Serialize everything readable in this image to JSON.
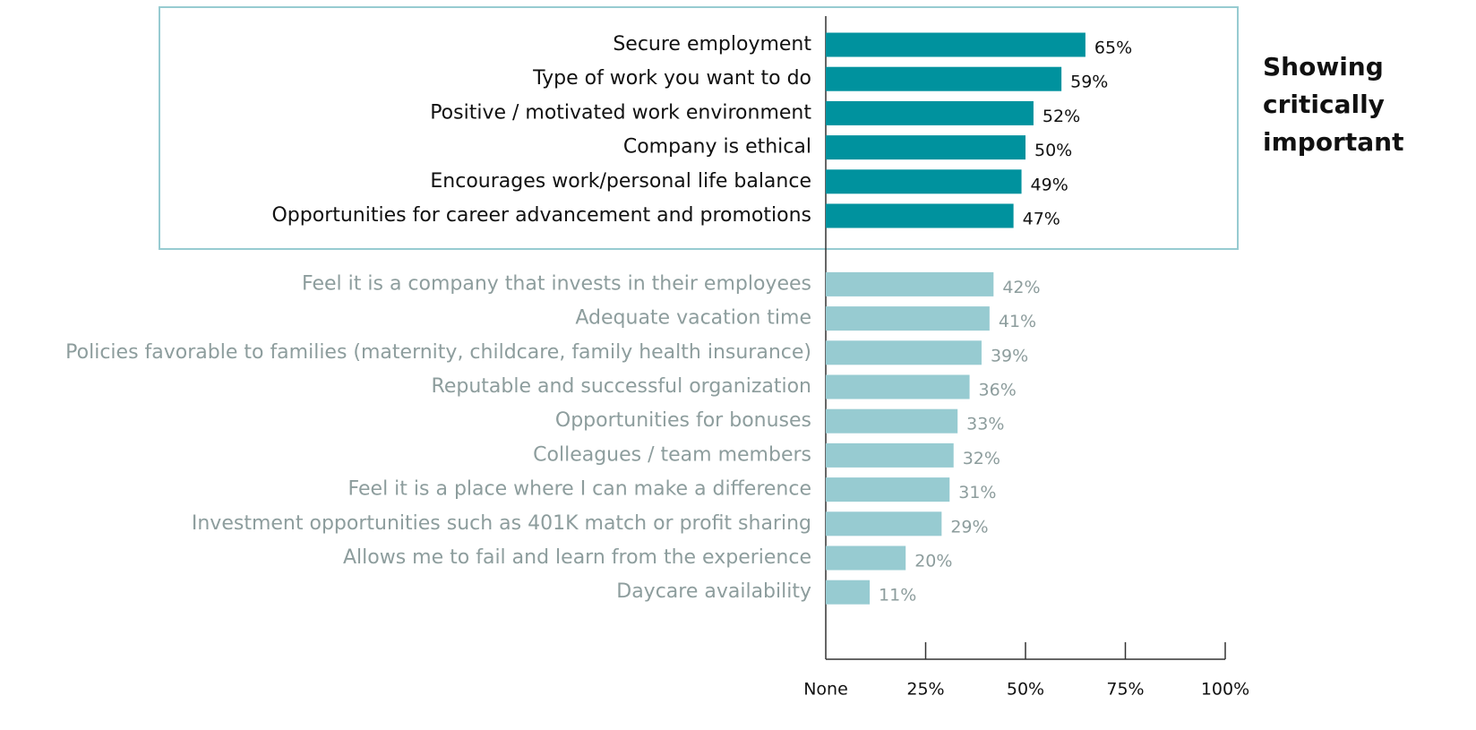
{
  "chart_data": {
    "type": "barh",
    "categories": [
      "Secure employment",
      "Type of work you want to do",
      "Positive / motivated work environment",
      "Company is ethical",
      "Encourages work/personal life balance",
      "Opportunities for career advancement and promotions",
      "Feel it is a company that invests in their employees",
      "Adequate vacation time",
      "Policies favorable to families (maternity, childcare, family health insurance)",
      "Reputable and successful organization",
      "Opportunities for bonuses",
      "Colleagues / team members",
      "Feel it is a place where I can make a difference",
      "Investment opportunities such as 401K match or profit sharing",
      "Allows me to fail and learn from the experience",
      "Daycare availability"
    ],
    "values": [
      65,
      59,
      52,
      50,
      49,
      47,
      42,
      41,
      39,
      36,
      33,
      32,
      31,
      29,
      20,
      11
    ],
    "value_labels": [
      "65%",
      "59%",
      "52%",
      "50%",
      "49%",
      "47%",
      "42%",
      "41%",
      "39%",
      "36%",
      "33%",
      "32%",
      "31%",
      "29%",
      "20%",
      "11%"
    ],
    "colors": [
      "#00929e",
      "#00929e",
      "#00929e",
      "#00929e",
      "#00929e",
      "#00929e",
      "#97cbd1",
      "#97cbd1",
      "#97cbd1",
      "#97cbd1",
      "#97cbd1",
      "#97cbd1",
      "#97cbd1",
      "#97cbd1",
      "#97cbd1",
      "#97cbd1"
    ],
    "label_colors": [
      "#111111",
      "#111111",
      "#111111",
      "#111111",
      "#111111",
      "#111111",
      "#8d9d9d",
      "#8d9d9d",
      "#8d9d9d",
      "#8d9d9d",
      "#8d9d9d",
      "#8d9d9d",
      "#8d9d9d",
      "#8d9d9d",
      "#8d9d9d",
      "#8d9d9d"
    ],
    "xlim": [
      0,
      100
    ],
    "xticks": [
      {
        "value": 0,
        "label": "None"
      },
      {
        "value": 25,
        "label": "25%"
      },
      {
        "value": 50,
        "label": "50%"
      },
      {
        "value": 75,
        "label": "75%"
      },
      {
        "value": 100,
        "label": "100%"
      }
    ],
    "annotation": [
      "Showing",
      "critically",
      "important"
    ]
  }
}
